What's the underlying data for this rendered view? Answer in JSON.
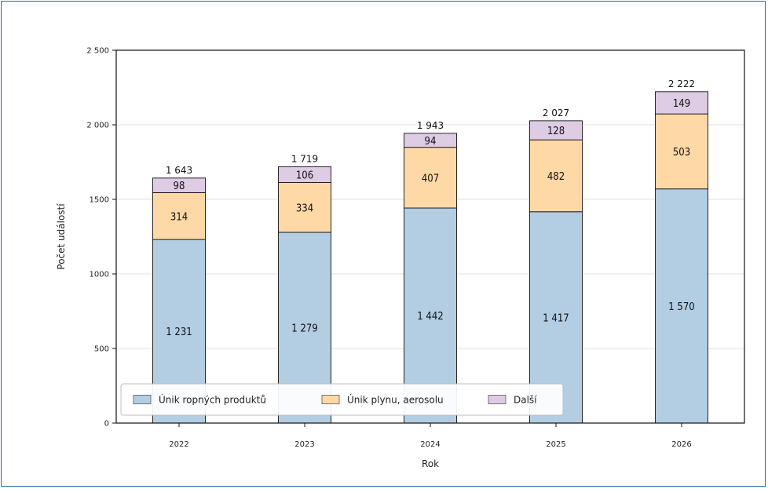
{
  "chart_data": {
    "type": "bar",
    "stacked": true,
    "categories": [
      "2022",
      "2023",
      "2024",
      "2025",
      "2026"
    ],
    "series": [
      {
        "name": "Únik ropných produktů",
        "values": [
          1231,
          1279,
          1442,
          1417,
          1570
        ],
        "labels": [
          "1 231",
          "1 279",
          "1 442",
          "1 417",
          "1 570"
        ],
        "color": "#b3cde3"
      },
      {
        "name": "Únik plynu, aerosolu",
        "values": [
          314,
          334,
          407,
          482,
          503
        ],
        "labels": [
          "314",
          "334",
          "407",
          "482",
          "503"
        ],
        "color": "#fed9a6"
      },
      {
        "name": "Další",
        "values": [
          98,
          106,
          94,
          128,
          149
        ],
        "labels": [
          "98",
          "106",
          "94",
          "128",
          "149"
        ],
        "color": "#decbe4"
      }
    ],
    "totals": [
      1643,
      1719,
      1943,
      2027,
      2222
    ],
    "total_labels": [
      "1 643",
      "1 719",
      "1 943",
      "2 027",
      "2 222"
    ],
    "ylim": [
      0,
      2500
    ],
    "yticks": [
      0,
      500,
      1000,
      1500,
      2000,
      2500
    ],
    "ytick_labels": [
      "0",
      "500",
      "1000",
      "1500",
      "2 000",
      "2 500"
    ],
    "xlabel": "Rok",
    "ylabel": "Počet událostí",
    "grid": "y",
    "legend_position": "bottom-left"
  }
}
